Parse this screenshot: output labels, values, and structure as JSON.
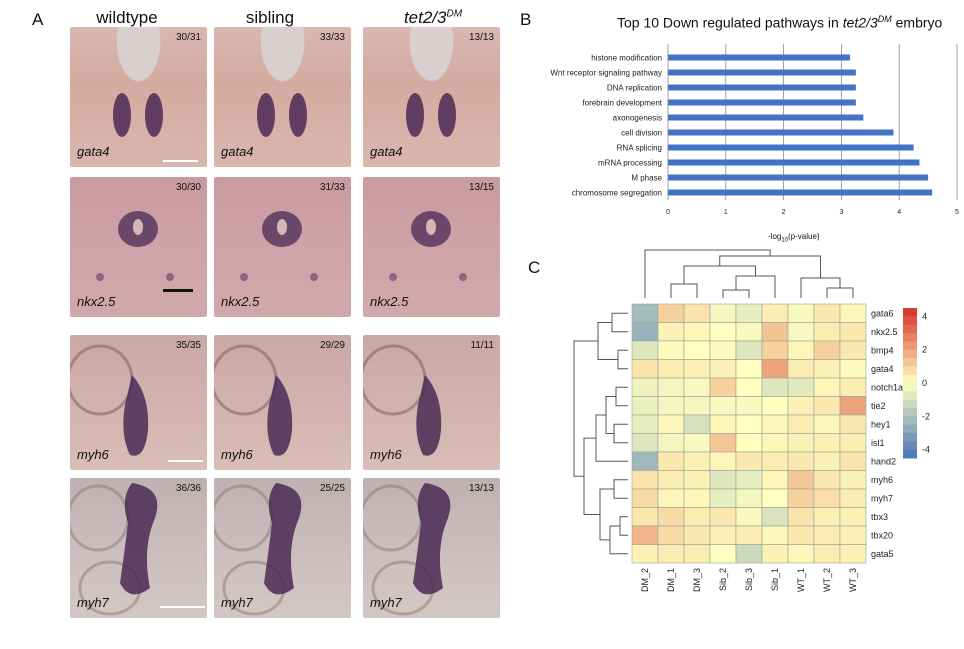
{
  "panel_a": {
    "letter": "A",
    "columns": [
      "wildtype",
      "sibling",
      "tet2/3"
    ],
    "column_sup": "DM",
    "rows": [
      {
        "gene": "gata4",
        "counts": [
          "30/31",
          "33/33",
          "13/13"
        ]
      },
      {
        "gene": "nkx2.5",
        "counts": [
          "30/30",
          "31/33",
          "13/15"
        ]
      },
      {
        "gene": "myh6",
        "counts": [
          "35/35",
          "29/29",
          "11/11"
        ]
      },
      {
        "gene": "myh7",
        "counts": [
          "36/36",
          "25/25",
          "13/13"
        ]
      }
    ]
  },
  "panel_b": {
    "letter": "B",
    "title_pre": "Top 10 Down regulated pathways  in ",
    "title_gene": "tet2/3",
    "title_sup": "DM",
    "title_post": " embryo",
    "xlabel_pre": "-log",
    "xlabel_sub": "10",
    "xlabel_post": "(p-value)"
  },
  "panel_c": {
    "letter": "C"
  },
  "chart_data": [
    {
      "type": "bar",
      "orientation": "horizontal",
      "categories": [
        "histone modification",
        "Wnt receptor signaling pathway",
        "DNA replication",
        "forebrain development",
        "axonogenesis",
        "cell division",
        "RNA splicing",
        "mRNA processing",
        "M phase",
        "chromosome segregation"
      ],
      "values": [
        3.15,
        3.25,
        3.25,
        3.25,
        3.38,
        3.9,
        4.25,
        4.35,
        4.5,
        4.57
      ],
      "xlim": [
        0,
        5
      ],
      "xticks": [
        "0",
        "1",
        "2",
        "3",
        "4",
        "5"
      ],
      "grid": true,
      "bar_color": "#4472c4"
    },
    {
      "type": "heatmap",
      "rows": [
        "gata6",
        "nkx2.5",
        "bmp4",
        "gata4",
        "notch1a",
        "tie2",
        "hey1",
        "isl1",
        "hand2",
        "myh6",
        "myh7",
        "tbx3",
        "tbx20",
        "gata5"
      ],
      "columns": [
        "DM_2",
        "DM_1",
        "DM_3",
        "Sib_2",
        "Sib_3",
        "Sib_1",
        "WT_1",
        "WT_2",
        "WT_3"
      ],
      "values": [
        [
          -2.2,
          1.0,
          0.6,
          -0.3,
          -0.6,
          0.4,
          -0.2,
          0.5,
          0.2
        ],
        [
          -2.5,
          0.3,
          0.2,
          0.0,
          -0.2,
          1.3,
          -0.2,
          0.4,
          0.5
        ],
        [
          -0.8,
          0.1,
          0.0,
          0.1,
          -0.8,
          1.0,
          0.2,
          1.0,
          0.5
        ],
        [
          0.6,
          0.4,
          0.3,
          0.3,
          0.0,
          2.0,
          0.4,
          0.3,
          0.1
        ],
        [
          -0.4,
          -0.3,
          -0.2,
          1.0,
          0.0,
          -0.8,
          -0.7,
          0.2,
          0.4
        ],
        [
          -0.5,
          -0.3,
          -0.3,
          -0.2,
          -0.2,
          0.0,
          0.3,
          0.5,
          2.0
        ],
        [
          -0.6,
          0.2,
          -1.0,
          0.2,
          0.0,
          0.2,
          0.4,
          0.2,
          0.5
        ],
        [
          -0.8,
          -0.3,
          -0.2,
          1.2,
          0.0,
          0.2,
          0.3,
          0.3,
          0.4
        ],
        [
          -2.3,
          0.5,
          0.3,
          0.2,
          0.5,
          0.4,
          0.5,
          0.3,
          0.6
        ],
        [
          0.6,
          0.4,
          0.3,
          -0.8,
          -0.6,
          0.2,
          1.2,
          0.5,
          0.3
        ],
        [
          0.8,
          0.2,
          0.2,
          -0.6,
          -0.3,
          0.0,
          1.0,
          0.7,
          0.4
        ],
        [
          0.5,
          0.8,
          0.4,
          0.5,
          -0.2,
          -0.9,
          0.6,
          0.3,
          0.3
        ],
        [
          1.6,
          0.8,
          0.5,
          0.3,
          0.4,
          0.2,
          0.5,
          0.4,
          0.3
        ],
        [
          0.3,
          0.4,
          0.4,
          0.0,
          -1.2,
          0.3,
          0.2,
          0.4,
          0.3
        ]
      ],
      "colorbar_ticks": [
        "4",
        "2",
        "0",
        "-2",
        "-4"
      ],
      "colorbar_range": [
        -4.5,
        4.5
      ],
      "color_low": "#4575b4",
      "color_mid": "#ffffbf",
      "color_high": "#d73027"
    }
  ]
}
